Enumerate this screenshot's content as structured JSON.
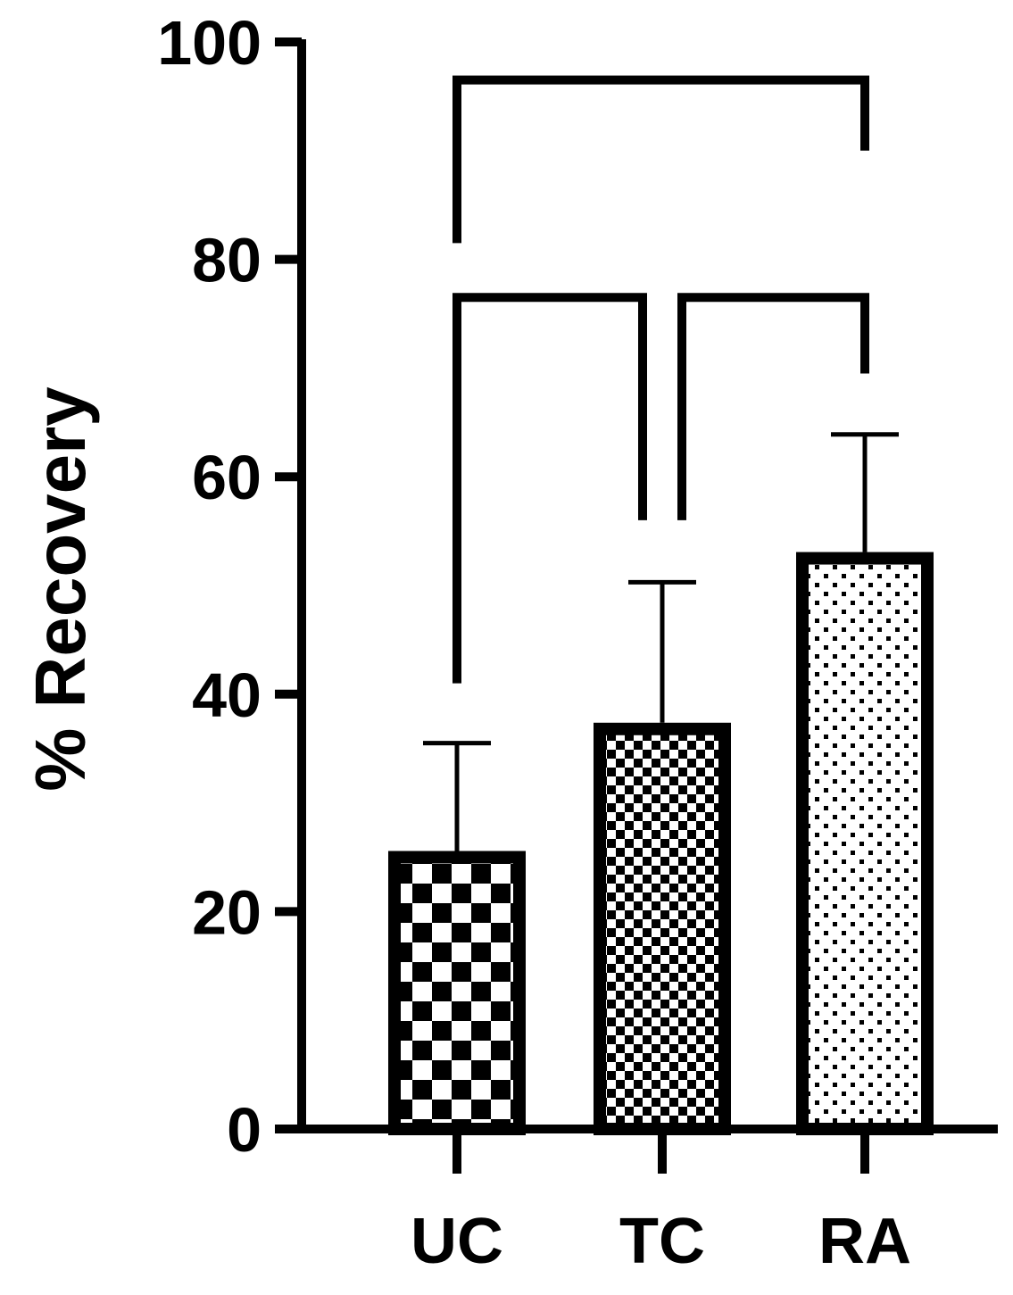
{
  "chart_data": {
    "type": "bar",
    "title": "",
    "xlabel": "",
    "ylabel": "% Recovery",
    "ylim": [
      0,
      100
    ],
    "yticks": [
      "0",
      "20",
      "40",
      "60",
      "80",
      "100"
    ],
    "categories": [
      "UC",
      "TC",
      "RA"
    ],
    "values": [
      25,
      36.8,
      52.5
    ],
    "error_upper": [
      35.5,
      50.3,
      63.9
    ],
    "patterns": [
      "checker-large",
      "checker-small",
      "dots"
    ],
    "grid": false,
    "legend": "none",
    "significance_brackets": [
      {
        "from": "UC",
        "to": "RA",
        "y": 96.5,
        "left_drop": 81.5,
        "right_drop": 90
      },
      {
        "from": "UC",
        "to": "TC",
        "y": 76.5,
        "left_drop": 41,
        "right_drop": 56
      },
      {
        "from": "TC",
        "to": "RA",
        "y": 76.5,
        "left_drop": 56,
        "right_drop": 69.5
      }
    ],
    "colors": {
      "ink": "#000000",
      "fill": "#ffffff"
    }
  }
}
